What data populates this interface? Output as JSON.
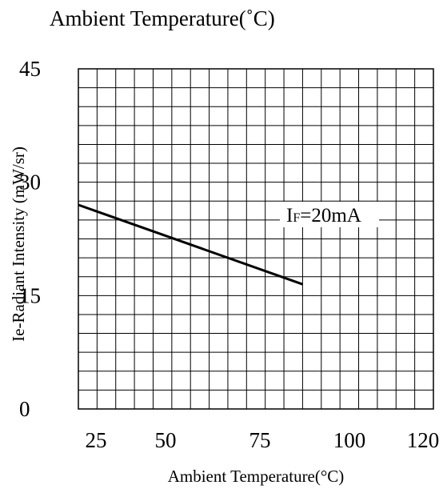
{
  "header": {
    "title": "Ambient Temperature(˚C)"
  },
  "chart_data": {
    "type": "line",
    "title": "",
    "xlabel": "Ambient Temperature(°C)",
    "ylabel": "Ie-Radiant Intensity (mW/sr)",
    "xlim": [
      25,
      120
    ],
    "ylim": [
      0,
      45
    ],
    "x_ticks": [
      "25",
      "50",
      "75",
      "100",
      "120"
    ],
    "y_ticks": [
      "0",
      "15",
      "30",
      "45"
    ],
    "grid": true,
    "series": [
      {
        "x": [
          25,
          85
        ],
        "y": [
          27,
          16.5
        ]
      }
    ],
    "annotation": {
      "main": "I",
      "sub": "F",
      "rest": "=20mA",
      "x": 95,
      "y": 27.5
    },
    "colors": {
      "line": "#000000",
      "grid": "#000000",
      "frame": "#000000"
    }
  }
}
